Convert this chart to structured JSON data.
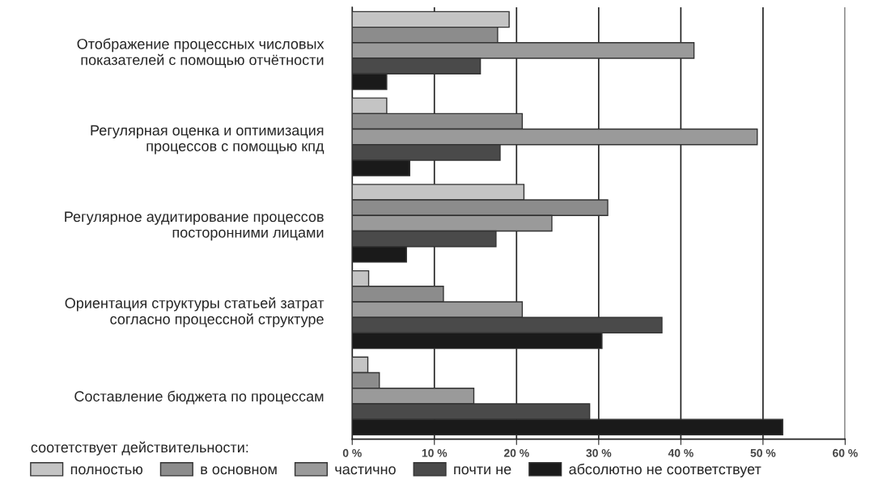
{
  "chart_data": {
    "type": "bar",
    "orientation": "horizontal",
    "categories": [
      "Отображение процессных числовых\nпоказателей с помощью отчётности",
      "Регулярная оценка и оптимизация\nпроцессов с помощью кпд",
      "Регулярное аудитирование процессов\nпосторонними лицами",
      "Ориентация структуры статьей затрат\nсогласно процессной структуре",
      "Составление бюджета по процессам"
    ],
    "series": [
      {
        "name": "полностью",
        "color": "#c4c4c4",
        "values": [
          19.1,
          4.2,
          20.9,
          2.0,
          1.9
        ]
      },
      {
        "name": "в основном",
        "color": "#8c8c8c",
        "values": [
          17.7,
          20.7,
          31.1,
          11.1,
          3.3
        ]
      },
      {
        "name": "частично",
        "color": "#9a9a9a",
        "values": [
          41.6,
          49.3,
          24.3,
          20.7,
          14.8
        ]
      },
      {
        "name": "почти не",
        "color": "#4a4a4a",
        "values": [
          15.6,
          18.0,
          17.5,
          37.7,
          28.9
        ]
      },
      {
        "name": "абсолютно не соответствует",
        "color": "#1a1a1a",
        "values": [
          4.2,
          7.0,
          6.6,
          30.4,
          52.4
        ]
      }
    ],
    "legend_title": "соотетствует действительности:",
    "legend": "bottom",
    "xlim": [
      0,
      60
    ],
    "xticks": [
      {
        "value": 0,
        "label": "0 %"
      },
      {
        "value": 10,
        "label": "10 %"
      },
      {
        "value": 20,
        "label": "20 %"
      },
      {
        "value": 30,
        "label": "30 %"
      },
      {
        "value": 40,
        "label": "40 %"
      },
      {
        "value": 50,
        "label": "50 %"
      },
      {
        "value": 60,
        "label": "60 %"
      }
    ],
    "grid": "x"
  }
}
